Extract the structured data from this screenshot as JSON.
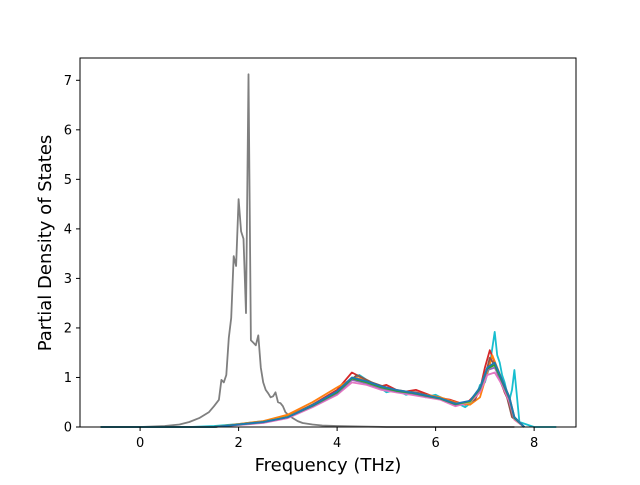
{
  "chart_data": {
    "type": "line",
    "xlabel": "Frequency (THz)",
    "ylabel": "Partial Density of States",
    "xlim": [
      -1.22,
      8.85
    ],
    "ylim": [
      0,
      7.45
    ],
    "xticks": [
      0,
      2,
      4,
      6,
      8
    ],
    "yticks": [
      0,
      1,
      2,
      3,
      4,
      5,
      6,
      7
    ],
    "grid": false,
    "legend": "none",
    "series": [
      {
        "color": "#7f7f7f",
        "x": [
          -0.8,
          0.0,
          0.5,
          0.8,
          1.0,
          1.2,
          1.4,
          1.5,
          1.6,
          1.65,
          1.7,
          1.75,
          1.8,
          1.85,
          1.9,
          1.95,
          2.0,
          2.05,
          2.1,
          2.15,
          2.2,
          2.25,
          2.3,
          2.35,
          2.4,
          2.45,
          2.5,
          2.55,
          2.6,
          2.65,
          2.7,
          2.75,
          2.8,
          2.85,
          2.9,
          2.95,
          3.0,
          3.1,
          3.2,
          3.3,
          3.5,
          3.7,
          4.0,
          4.5,
          5.0,
          6.0,
          7.0,
          7.6
        ],
        "y": [
          0,
          0,
          0.02,
          0.05,
          0.1,
          0.18,
          0.3,
          0.42,
          0.55,
          0.95,
          0.9,
          1.05,
          1.8,
          2.2,
          3.45,
          3.25,
          4.6,
          3.95,
          3.8,
          2.3,
          7.12,
          1.75,
          1.7,
          1.65,
          1.85,
          1.2,
          0.9,
          0.75,
          0.68,
          0.6,
          0.62,
          0.7,
          0.5,
          0.48,
          0.42,
          0.3,
          0.25,
          0.18,
          0.12,
          0.08,
          0.05,
          0.03,
          0.02,
          0.01,
          0,
          0,
          0,
          0
        ]
      },
      {
        "color": "#17becf",
        "x": [
          -0.8,
          1.0,
          1.5,
          2.0,
          2.5,
          3.0,
          3.3,
          3.6,
          3.9,
          4.1,
          4.3,
          4.45,
          4.6,
          4.8,
          5.0,
          5.2,
          5.4,
          5.6,
          5.8,
          6.0,
          6.2,
          6.4,
          6.6,
          6.8,
          6.9,
          7.0,
          7.1,
          7.2,
          7.25,
          7.3,
          7.35,
          7.4,
          7.45,
          7.5,
          7.55,
          7.6,
          7.7,
          8.0,
          8.45
        ],
        "y": [
          0,
          0,
          0.02,
          0.06,
          0.12,
          0.2,
          0.35,
          0.5,
          0.65,
          0.8,
          0.95,
          1.05,
          0.95,
          0.85,
          0.7,
          0.75,
          0.65,
          0.7,
          0.6,
          0.65,
          0.55,
          0.5,
          0.4,
          0.55,
          0.85,
          0.9,
          1.25,
          1.92,
          1.45,
          1.3,
          1.05,
          0.9,
          0.7,
          0.55,
          0.75,
          1.15,
          0.1,
          0,
          0
        ]
      },
      {
        "color": "#d62728",
        "x": [
          -0.8,
          1.5,
          2.5,
          3.0,
          3.5,
          4.0,
          4.3,
          4.5,
          4.8,
          5.0,
          5.3,
          5.6,
          6.0,
          6.3,
          6.6,
          6.9,
          7.0,
          7.1,
          7.2,
          7.3,
          7.4,
          7.5,
          7.6,
          7.8
        ],
        "y": [
          0,
          0,
          0.1,
          0.22,
          0.45,
          0.75,
          1.1,
          1.0,
          0.8,
          0.85,
          0.7,
          0.75,
          0.6,
          0.55,
          0.45,
          0.75,
          1.2,
          1.55,
          1.3,
          1.0,
          0.7,
          0.5,
          0.2,
          0
        ]
      },
      {
        "color": "#ff7f0e",
        "x": [
          -0.8,
          1.5,
          2.5,
          3.0,
          3.5,
          4.0,
          4.35,
          4.6,
          4.9,
          5.2,
          5.5,
          5.8,
          6.1,
          6.4,
          6.7,
          6.9,
          7.05,
          7.15,
          7.25,
          7.35,
          7.5,
          7.6,
          7.8
        ],
        "y": [
          0,
          0,
          0.12,
          0.25,
          0.5,
          0.8,
          1.0,
          0.95,
          0.8,
          0.75,
          0.7,
          0.65,
          0.6,
          0.5,
          0.45,
          0.6,
          1.1,
          1.45,
          1.2,
          0.95,
          0.55,
          0.15,
          0
        ]
      },
      {
        "color": "#8c564b",
        "x": [
          -0.8,
          1.5,
          2.5,
          3.0,
          3.5,
          4.0,
          4.4,
          4.7,
          5.0,
          5.3,
          5.6,
          5.9,
          6.2,
          6.5,
          6.8,
          7.0,
          7.1,
          7.2,
          7.3,
          7.45,
          7.55,
          7.8
        ],
        "y": [
          0,
          0,
          0.1,
          0.2,
          0.45,
          0.7,
          1.05,
          0.9,
          0.8,
          0.72,
          0.7,
          0.62,
          0.55,
          0.45,
          0.55,
          1.0,
          1.4,
          1.25,
          0.95,
          0.6,
          0.2,
          0
        ]
      },
      {
        "color": "#e377c2",
        "x": [
          -0.8,
          1.5,
          2.5,
          3.0,
          3.5,
          4.0,
          4.3,
          4.6,
          4.9,
          5.2,
          5.5,
          5.8,
          6.1,
          6.4,
          6.7,
          6.9,
          7.05,
          7.2,
          7.35,
          7.5,
          7.6,
          7.8
        ],
        "y": [
          0,
          0,
          0.08,
          0.18,
          0.4,
          0.65,
          0.9,
          0.85,
          0.75,
          0.7,
          0.65,
          0.6,
          0.55,
          0.42,
          0.5,
          0.7,
          1.05,
          1.1,
          0.85,
          0.5,
          0.15,
          0
        ]
      },
      {
        "color": "#9467bd",
        "x": [
          -0.8,
          1.5,
          2.5,
          3.0,
          3.5,
          4.0,
          4.3,
          4.6,
          4.9,
          5.2,
          5.5,
          5.8,
          6.1,
          6.4,
          6.7,
          6.9,
          7.05,
          7.2,
          7.35,
          7.5,
          7.6,
          7.8
        ],
        "y": [
          0,
          0,
          0.09,
          0.2,
          0.42,
          0.68,
          0.95,
          0.88,
          0.78,
          0.72,
          0.68,
          0.62,
          0.57,
          0.45,
          0.52,
          0.75,
          1.15,
          1.2,
          0.9,
          0.55,
          0.18,
          0
        ]
      },
      {
        "color": "#bcbd22",
        "x": [
          -0.8,
          1.5,
          2.5,
          3.0,
          3.5,
          4.0,
          4.3,
          4.6,
          4.9,
          5.2,
          5.5,
          5.8,
          6.1,
          6.4,
          6.7,
          6.9,
          7.05,
          7.2,
          7.35,
          7.5,
          7.6,
          7.8
        ],
        "y": [
          0,
          0,
          0.1,
          0.21,
          0.44,
          0.7,
          1.0,
          0.9,
          0.8,
          0.74,
          0.7,
          0.64,
          0.58,
          0.47,
          0.5,
          0.8,
          1.2,
          1.3,
          0.95,
          0.6,
          0.2,
          0
        ]
      },
      {
        "color": "#2ca02c",
        "x": [
          -0.8,
          1.5,
          2.5,
          3.0,
          3.5,
          4.0,
          4.3,
          4.6,
          4.9,
          5.2,
          5.5,
          5.8,
          6.1,
          6.4,
          6.7,
          6.9,
          7.05,
          7.2,
          7.35,
          7.5,
          7.6,
          7.8
        ],
        "y": [
          0,
          0,
          0.1,
          0.2,
          0.43,
          0.7,
          0.98,
          0.9,
          0.8,
          0.73,
          0.69,
          0.63,
          0.57,
          0.46,
          0.52,
          0.78,
          1.18,
          1.25,
          0.92,
          0.58,
          0.18,
          0
        ]
      },
      {
        "color": "#1f77b4",
        "x": [
          -0.8,
          1.5,
          2.5,
          3.0,
          3.5,
          4.0,
          4.3,
          4.6,
          4.9,
          5.2,
          5.5,
          5.8,
          6.1,
          6.4,
          6.7,
          6.9,
          7.05,
          7.2,
          7.35,
          7.5,
          7.6,
          7.8
        ],
        "y": [
          0,
          0,
          0.1,
          0.2,
          0.44,
          0.72,
          1.0,
          0.92,
          0.82,
          0.75,
          0.7,
          0.64,
          0.58,
          0.47,
          0.53,
          0.8,
          1.2,
          1.3,
          0.95,
          0.6,
          0.2,
          0
        ]
      }
    ]
  }
}
